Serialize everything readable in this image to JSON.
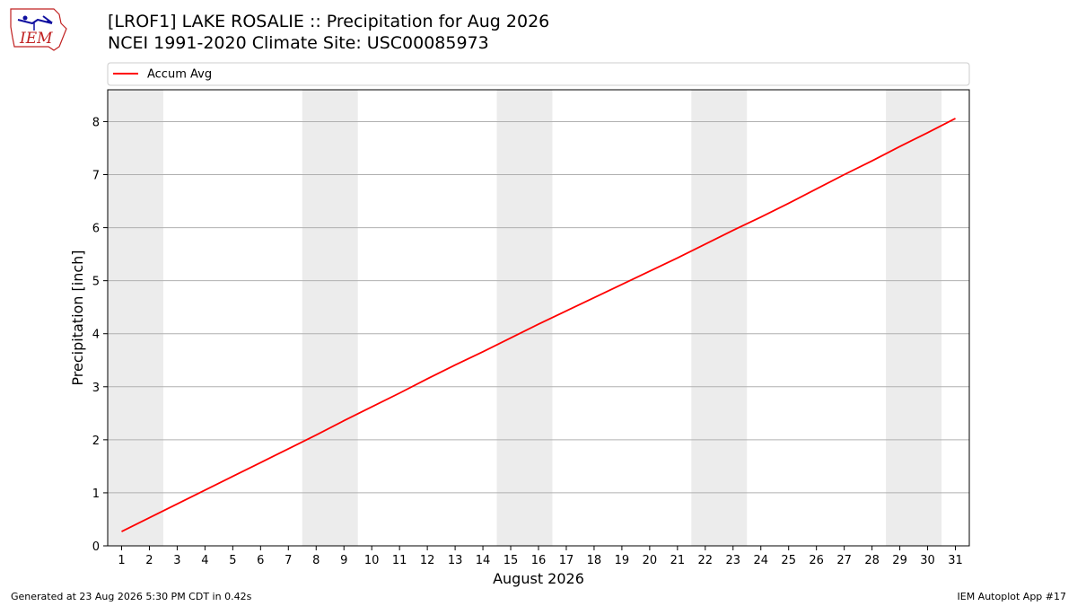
{
  "header": {
    "title_line1": "[LROF1] LAKE ROSALIE :: Precipitation for Aug 2026",
    "title_line2": "NCEI 1991-2020 Climate Site: USC00085973",
    "logo_text": "IEM"
  },
  "footer": {
    "generated": "Generated at 23 Aug 2026 5:30 PM CDT in 0.42s",
    "app": "IEM Autoplot App #17"
  },
  "chart_data": {
    "type": "line",
    "xlabel": "August 2026",
    "ylabel": "Precipitation [inch]",
    "x": [
      1,
      2,
      3,
      4,
      5,
      6,
      7,
      8,
      9,
      10,
      11,
      12,
      13,
      14,
      15,
      16,
      17,
      18,
      19,
      20,
      21,
      22,
      23,
      24,
      25,
      26,
      27,
      28,
      29,
      30,
      31
    ],
    "series": [
      {
        "name": "Accum Avg",
        "color": "#ff0000",
        "values": [
          0.27,
          0.53,
          0.79,
          1.05,
          1.31,
          1.57,
          1.83,
          2.09,
          2.36,
          2.62,
          2.88,
          3.15,
          3.41,
          3.66,
          3.92,
          4.18,
          4.43,
          4.68,
          4.93,
          5.18,
          5.43,
          5.69,
          5.95,
          6.2,
          6.46,
          6.73,
          7.0,
          7.26,
          7.53,
          7.79,
          8.06
        ]
      }
    ],
    "ylim": [
      0,
      8.6
    ],
    "yticks": [
      0,
      1,
      2,
      3,
      4,
      5,
      6,
      7,
      8
    ],
    "grid": "y",
    "legend": "top",
    "weekend_shading": [
      [
        1,
        2
      ],
      [
        8,
        9
      ],
      [
        15,
        16
      ],
      [
        22,
        23
      ],
      [
        29,
        30
      ]
    ],
    "shade_color": "#ececec"
  }
}
